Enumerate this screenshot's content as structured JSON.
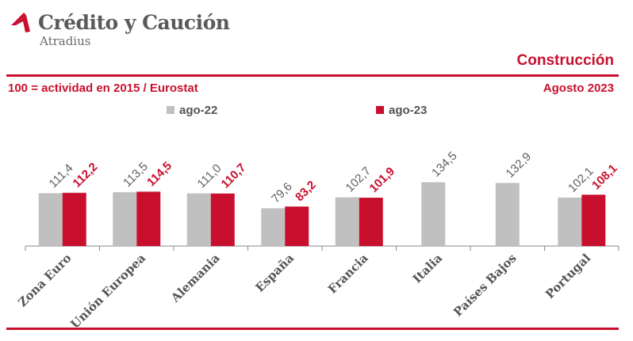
{
  "brand": {
    "name": "Crédito y Caución",
    "sub": "Atradius"
  },
  "header": {
    "sector": "Construcción",
    "subtitle": "100 = actividad en 2015 / Eurostat",
    "date": "Agosto 2023"
  },
  "colors": {
    "accent": "#c8102e",
    "series_a": "#c0c0c0",
    "series_b": "#c8102e"
  },
  "chart_data": {
    "type": "bar",
    "categories": [
      "Zona Euro",
      "Unión Europea",
      "Alemania",
      "España",
      "Francia",
      "Italia",
      "Países Bajos",
      "Portugal"
    ],
    "series": [
      {
        "name": "ago-22",
        "values": [
          111.4,
          113.5,
          111.0,
          79.6,
          102.7,
          134.5,
          132.9,
          102.1
        ],
        "labels": [
          "111,4",
          "113,5",
          "111,0",
          "79,6",
          "102,7",
          "134,5",
          "132,9",
          "102,1"
        ]
      },
      {
        "name": "ago-23",
        "values": [
          112.2,
          114.5,
          110.7,
          83.2,
          101.9,
          null,
          null,
          108.1
        ],
        "labels": [
          "112,2",
          "114,5",
          "110,7",
          "83,2",
          "101,9",
          "",
          "",
          "108,1"
        ]
      }
    ],
    "legend_position": "top",
    "grid": false
  }
}
